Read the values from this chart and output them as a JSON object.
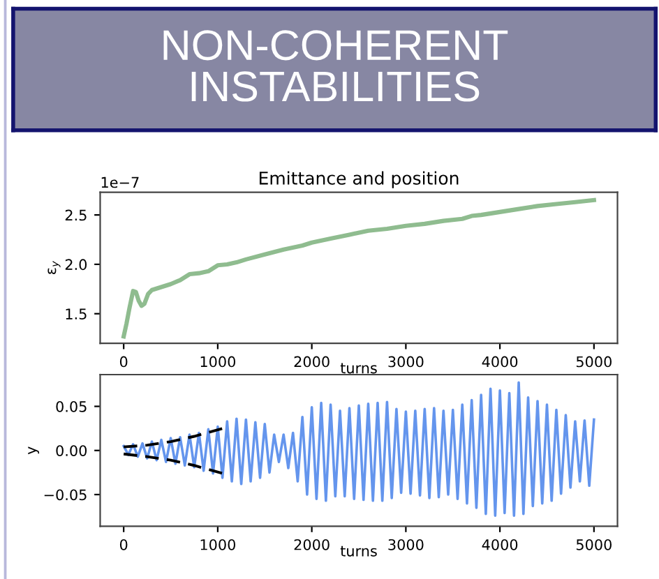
{
  "chart_data": [
    {
      "type": "other",
      "title": "NON-COHERENT\nINSTABILITIES"
    },
    {
      "type": "line",
      "title": "Emittance and position",
      "xlabel": "turns",
      "ylabel": "ε$_{y}$",
      "annotations": [
        "1e−7"
      ],
      "x": [
        0,
        30,
        60,
        100,
        130,
        160,
        190,
        220,
        260,
        300,
        400,
        500,
        600,
        700,
        800,
        900,
        1000,
        1100,
        1200,
        1300,
        1500,
        1700,
        1900,
        2000,
        2200,
        2400,
        2600,
        2800,
        3000,
        3200,
        3400,
        3600,
        3700,
        3800,
        4000,
        4200,
        4400,
        4600,
        4800,
        5000
      ],
      "series": [
        {
          "color": "#8fbc8f",
          "values": [
            1.27,
            1.4,
            1.55,
            1.73,
            1.72,
            1.63,
            1.58,
            1.6,
            1.7,
            1.74,
            1.77,
            1.8,
            1.84,
            1.9,
            1.91,
            1.93,
            1.99,
            2.0,
            2.02,
            2.05,
            2.1,
            2.15,
            2.19,
            2.22,
            2.26,
            2.3,
            2.34,
            2.36,
            2.39,
            2.41,
            2.44,
            2.46,
            2.49,
            2.5,
            2.53,
            2.56,
            2.59,
            2.61,
            2.63,
            2.65
          ]
        }
      ],
      "xlim": [
        -250,
        5250
      ],
      "xticks": [
        0,
        1000,
        2000,
        3000,
        4000,
        5000
      ],
      "ylim": [
        1.2,
        2.73
      ],
      "yticks": [
        1.5,
        {
          "value": 2,
          "label": "2.0"
        },
        2.5
      ],
      "grid": false
    },
    {
      "type": "line",
      "xlabel": "turns",
      "ylabel": "y",
      "series": [
        {
          "type": "line",
          "color": "#6495ed",
          "x": [
            0,
            50,
            100,
            150,
            200,
            250,
            300,
            350,
            400,
            450,
            500,
            550,
            600,
            650,
            700,
            750,
            800,
            850,
            900,
            950,
            1000,
            1050,
            1100,
            1150,
            1200,
            1250,
            1300,
            1350,
            1400,
            1450,
            1500,
            1550,
            1600,
            1650,
            1700,
            1750,
            1800,
            1850,
            1900,
            1950,
            2000,
            2050,
            2100,
            2150,
            2200,
            2250,
            2300,
            2350,
            2400,
            2450,
            2500,
            2550,
            2600,
            2650,
            2700,
            2750,
            2800,
            2850,
            2900,
            2950,
            3000,
            3050,
            3100,
            3150,
            3200,
            3250,
            3300,
            3350,
            3400,
            3450,
            3500,
            3550,
            3600,
            3650,
            3700,
            3750,
            3800,
            3850,
            3900,
            3950,
            4000,
            4050,
            4100,
            4150,
            4200,
            4250,
            4300,
            4350,
            4400,
            4450,
            4500,
            4550,
            4600,
            4650,
            4700,
            4750,
            4800,
            4850,
            4900,
            4950,
            5000
          ],
          "values": [
            0.005,
            -0.005,
            0.007,
            -0.007,
            0.008,
            -0.009,
            0.01,
            -0.011,
            0.012,
            -0.013,
            0.014,
            -0.015,
            0.015,
            -0.017,
            0.018,
            -0.019,
            0.02,
            -0.023,
            0.024,
            -0.026,
            0.027,
            -0.031,
            0.033,
            -0.035,
            0.036,
            -0.038,
            0.035,
            -0.035,
            0.032,
            -0.031,
            0.03,
            -0.025,
            0.018,
            -0.013,
            0.018,
            -0.02,
            0.02,
            -0.035,
            0.038,
            -0.05,
            0.049,
            -0.055,
            0.054,
            -0.057,
            0.052,
            -0.052,
            0.045,
            -0.052,
            0.048,
            -0.055,
            0.051,
            -0.056,
            0.053,
            -0.057,
            0.054,
            -0.057,
            0.055,
            -0.054,
            0.047,
            -0.048,
            0.044,
            -0.049,
            0.045,
            -0.051,
            0.047,
            -0.054,
            0.048,
            -0.053,
            0.045,
            -0.05,
            0.046,
            -0.055,
            0.052,
            -0.06,
            0.057,
            -0.065,
            0.063,
            -0.072,
            0.07,
            -0.074,
            0.068,
            -0.071,
            0.065,
            -0.074,
            0.077,
            -0.072,
            0.06,
            -0.063,
            0.056,
            -0.06,
            0.052,
            -0.057,
            0.046,
            -0.049,
            0.04,
            -0.042,
            0.033,
            -0.035,
            0.034,
            -0.04,
            0.035
          ]
        },
        {
          "type": "line",
          "color": "#000000",
          "line_style": "dashed",
          "x": [
            0,
            250,
            500,
            750,
            1050
          ],
          "values": [
            0.004,
            0.006,
            0.01,
            0.016,
            0.025
          ]
        },
        {
          "type": "line",
          "color": "#000000",
          "line_style": "dashed",
          "x": [
            0,
            250,
            500,
            750,
            1050
          ],
          "values": [
            -0.004,
            -0.007,
            -0.011,
            -0.017,
            -0.026
          ]
        }
      ],
      "xlim": [
        -250,
        5250
      ],
      "xticks": [
        0,
        1000,
        2000,
        3000,
        4000,
        5000
      ],
      "ylim": [
        -0.086,
        0.086
      ],
      "yticks": [
        {
          "value": -0.05,
          "label": "−0.05"
        },
        {
          "value": 0,
          "label": "0.00"
        },
        0.05
      ],
      "grid": false
    }
  ]
}
